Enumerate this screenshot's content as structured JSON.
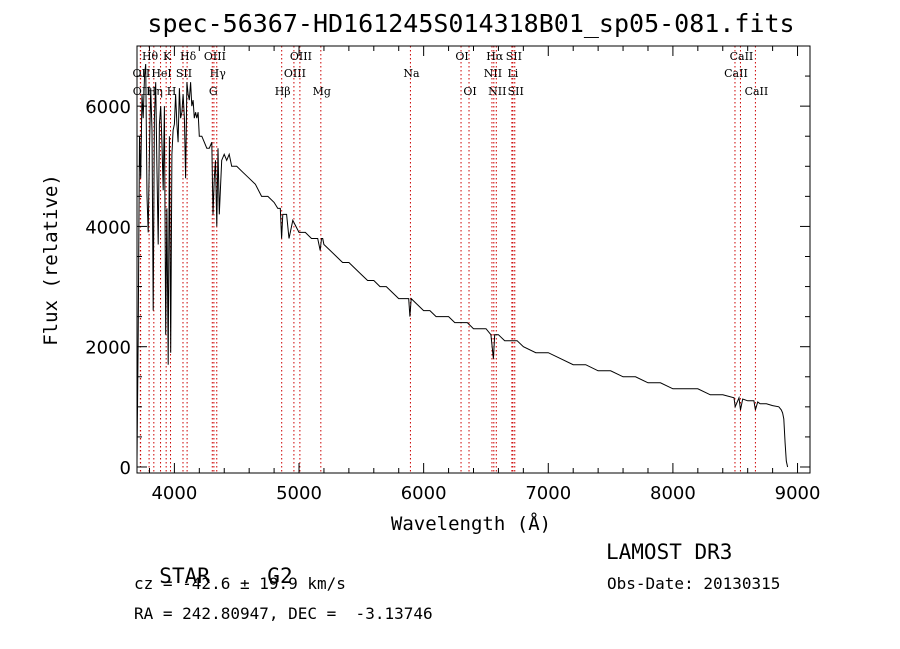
{
  "chart_data": {
    "type": "line",
    "title": "spec-56367-HD161245S014318B01_sp05-081.fits",
    "xlabel": "Wavelength (Å)",
    "ylabel": "Flux (relative)",
    "xlim": [
      3700,
      9100
    ],
    "ylim": [
      -100,
      7000
    ],
    "xticks": [
      4000,
      5000,
      6000,
      7000,
      8000,
      9000
    ],
    "yticks": [
      0,
      2000,
      4000,
      6000
    ],
    "grid": false,
    "series": [
      {
        "name": "spectrum",
        "color": "#000000",
        "x": [
          3700,
          3710,
          3720,
          3730,
          3740,
          3750,
          3760,
          3770,
          3780,
          3790,
          3800,
          3810,
          3820,
          3830,
          3840,
          3850,
          3860,
          3870,
          3880,
          3890,
          3900,
          3910,
          3920,
          3930,
          3940,
          3950,
          3960,
          3970,
          3980,
          3990,
          4000,
          4010,
          4020,
          4030,
          4040,
          4050,
          4060,
          4070,
          4080,
          4090,
          4100,
          4110,
          4120,
          4130,
          4140,
          4150,
          4160,
          4170,
          4180,
          4190,
          4200,
          4220,
          4240,
          4260,
          4280,
          4300,
          4310,
          4320,
          4330,
          4340,
          4350,
          4360,
          4380,
          4400,
          4420,
          4440,
          4460,
          4480,
          4500,
          4550,
          4600,
          4650,
          4700,
          4750,
          4800,
          4830,
          4850,
          4860,
          4870,
          4880,
          4900,
          4920,
          4950,
          5000,
          5050,
          5100,
          5150,
          5170,
          5180,
          5190,
          5200,
          5250,
          5300,
          5350,
          5400,
          5450,
          5500,
          5550,
          5600,
          5650,
          5700,
          5750,
          5800,
          5850,
          5880,
          5890,
          5900,
          5950,
          6000,
          6050,
          6100,
          6150,
          6200,
          6250,
          6300,
          6350,
          6400,
          6450,
          6500,
          6540,
          6560,
          6570,
          6580,
          6600,
          6650,
          6700,
          6750,
          6800,
          6900,
          7000,
          7100,
          7200,
          7300,
          7400,
          7500,
          7600,
          7700,
          7800,
          7900,
          8000,
          8100,
          8200,
          8300,
          8400,
          8490,
          8500,
          8530,
          8542,
          8560,
          8600,
          8650,
          8662,
          8680,
          8700,
          8750,
          8800,
          8850,
          8870,
          8880,
          8890,
          8900,
          8910,
          8920
        ],
        "y": [
          100,
          2200,
          5500,
          4800,
          6200,
          5800,
          6500,
          6700,
          4500,
          3900,
          5300,
          6300,
          5600,
          2600,
          5800,
          6400,
          5000,
          3700,
          5700,
          6000,
          5400,
          4600,
          6000,
          2200,
          4300,
          1700,
          5500,
          1900,
          5200,
          5600,
          5700,
          6200,
          5700,
          5400,
          6300,
          5800,
          5900,
          6200,
          5800,
          4800,
          6400,
          6200,
          6100,
          6400,
          6000,
          6100,
          5800,
          5900,
          5800,
          5900,
          5500,
          5500,
          5400,
          5300,
          5300,
          5400,
          4200,
          4800,
          5100,
          4000,
          5300,
          4200,
          5100,
          5200,
          5100,
          5200,
          5000,
          5000,
          5000,
          4900,
          4800,
          4700,
          4500,
          4500,
          4400,
          4300,
          4300,
          3800,
          4200,
          4200,
          4200,
          3800,
          4100,
          3900,
          3900,
          3800,
          3800,
          3600,
          3800,
          3800,
          3700,
          3600,
          3500,
          3400,
          3400,
          3300,
          3200,
          3100,
          3100,
          3000,
          3000,
          2900,
          2800,
          2800,
          2800,
          2500,
          2800,
          2700,
          2600,
          2600,
          2500,
          2500,
          2500,
          2400,
          2400,
          2400,
          2300,
          2300,
          2300,
          2200,
          1800,
          2200,
          2200,
          2200,
          2100,
          2100,
          2100,
          2000,
          1900,
          1900,
          1800,
          1700,
          1700,
          1600,
          1600,
          1500,
          1500,
          1400,
          1400,
          1300,
          1300,
          1300,
          1200,
          1200,
          1150,
          1000,
          1150,
          950,
          1130,
          1100,
          1100,
          950,
          1080,
          1050,
          1050,
          1020,
          1000,
          950,
          900,
          800,
          400,
          100,
          0
        ]
      }
    ],
    "lines": [
      {
        "name": "Hθ",
        "x": 3797,
        "row": 0
      },
      {
        "name": "OII",
        "x": 3727,
        "row": 1
      },
      {
        "name": "OII",
        "x": 3729,
        "row": 2
      },
      {
        "name": "Hη",
        "x": 3835,
        "row": 2
      },
      {
        "name": "HeI",
        "x": 3889,
        "row": 1
      },
      {
        "name": "K",
        "x": 3934,
        "row": 0
      },
      {
        "name": "H",
        "x": 3969,
        "row": 2
      },
      {
        "name": "SII",
        "x": 4069,
        "row": 1
      },
      {
        "name": "Hδ",
        "x": 4102,
        "row": 0
      },
      {
        "name": "OIII",
        "x": 4317,
        "row": 0
      },
      {
        "name": "Hγ",
        "x": 4340,
        "row": 1
      },
      {
        "name": "G",
        "x": 4304,
        "row": 2
      },
      {
        "name": "Hβ",
        "x": 4861,
        "row": 2
      },
      {
        "name": "OIII",
        "x": 4959,
        "row": 1
      },
      {
        "name": "OIII",
        "x": 5007,
        "row": 0
      },
      {
        "name": "Mg",
        "x": 5175,
        "row": 2
      },
      {
        "name": "Na",
        "x": 5894,
        "row": 1
      },
      {
        "name": "OI",
        "x": 6300,
        "row": 0
      },
      {
        "name": "OI",
        "x": 6364,
        "row": 2
      },
      {
        "name": "Hα",
        "x": 6563,
        "row": 0
      },
      {
        "name": "NII",
        "x": 6548,
        "row": 1
      },
      {
        "name": "NII",
        "x": 6583,
        "row": 2
      },
      {
        "name": "SII",
        "x": 6716,
        "row": 0
      },
      {
        "name": "Li",
        "x": 6708,
        "row": 1
      },
      {
        "name": "SII",
        "x": 6731,
        "row": 2
      },
      {
        "name": "CaII",
        "x": 8498,
        "row": 1
      },
      {
        "name": "CaII",
        "x": 8542,
        "row": 0
      },
      {
        "name": "CaII",
        "x": 8662,
        "row": 2
      }
    ],
    "line_color": "#cc0000"
  },
  "info": {
    "class": "STAR",
    "subclass": "G2",
    "cz": "cz = -42.6 ± 19.9 km/s",
    "coords": "RA = 242.80947, DEC =  -3.13746",
    "survey": "LAMOST DR3",
    "obs_date": "Obs-Date: 20130315"
  }
}
